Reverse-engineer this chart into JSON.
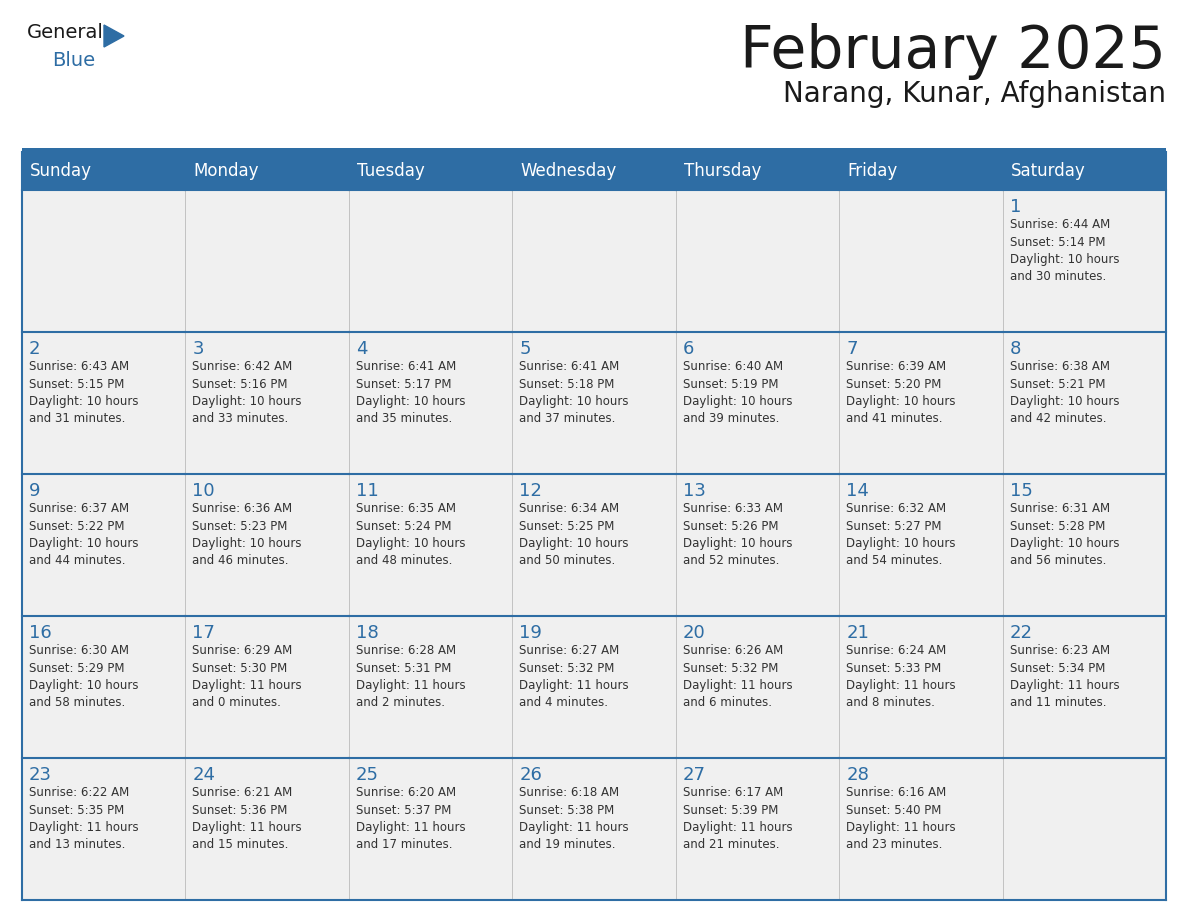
{
  "title": "February 2025",
  "subtitle": "Narang, Kunar, Afghanistan",
  "days_of_week": [
    "Sunday",
    "Monday",
    "Tuesday",
    "Wednesday",
    "Thursday",
    "Friday",
    "Saturday"
  ],
  "header_bg": "#2E6DA4",
  "header_text": "#FFFFFF",
  "cell_bg_light": "#F0F0F0",
  "border_color": "#2E6DA4",
  "row_border_color": "#4A90C4",
  "text_color": "#333333",
  "day_number_color": "#2E6DA4",
  "title_color": "#1a1a1a",
  "logo_general_color": "#1a1a1a",
  "logo_blue_color": "#2E6DA4",
  "logo_triangle_color": "#2E6DA4",
  "calendar_data": [
    [
      {
        "day": null,
        "info": ""
      },
      {
        "day": null,
        "info": ""
      },
      {
        "day": null,
        "info": ""
      },
      {
        "day": null,
        "info": ""
      },
      {
        "day": null,
        "info": ""
      },
      {
        "day": null,
        "info": ""
      },
      {
        "day": 1,
        "info": "Sunrise: 6:44 AM\nSunset: 5:14 PM\nDaylight: 10 hours\nand 30 minutes."
      }
    ],
    [
      {
        "day": 2,
        "info": "Sunrise: 6:43 AM\nSunset: 5:15 PM\nDaylight: 10 hours\nand 31 minutes."
      },
      {
        "day": 3,
        "info": "Sunrise: 6:42 AM\nSunset: 5:16 PM\nDaylight: 10 hours\nand 33 minutes."
      },
      {
        "day": 4,
        "info": "Sunrise: 6:41 AM\nSunset: 5:17 PM\nDaylight: 10 hours\nand 35 minutes."
      },
      {
        "day": 5,
        "info": "Sunrise: 6:41 AM\nSunset: 5:18 PM\nDaylight: 10 hours\nand 37 minutes."
      },
      {
        "day": 6,
        "info": "Sunrise: 6:40 AM\nSunset: 5:19 PM\nDaylight: 10 hours\nand 39 minutes."
      },
      {
        "day": 7,
        "info": "Sunrise: 6:39 AM\nSunset: 5:20 PM\nDaylight: 10 hours\nand 41 minutes."
      },
      {
        "day": 8,
        "info": "Sunrise: 6:38 AM\nSunset: 5:21 PM\nDaylight: 10 hours\nand 42 minutes."
      }
    ],
    [
      {
        "day": 9,
        "info": "Sunrise: 6:37 AM\nSunset: 5:22 PM\nDaylight: 10 hours\nand 44 minutes."
      },
      {
        "day": 10,
        "info": "Sunrise: 6:36 AM\nSunset: 5:23 PM\nDaylight: 10 hours\nand 46 minutes."
      },
      {
        "day": 11,
        "info": "Sunrise: 6:35 AM\nSunset: 5:24 PM\nDaylight: 10 hours\nand 48 minutes."
      },
      {
        "day": 12,
        "info": "Sunrise: 6:34 AM\nSunset: 5:25 PM\nDaylight: 10 hours\nand 50 minutes."
      },
      {
        "day": 13,
        "info": "Sunrise: 6:33 AM\nSunset: 5:26 PM\nDaylight: 10 hours\nand 52 minutes."
      },
      {
        "day": 14,
        "info": "Sunrise: 6:32 AM\nSunset: 5:27 PM\nDaylight: 10 hours\nand 54 minutes."
      },
      {
        "day": 15,
        "info": "Sunrise: 6:31 AM\nSunset: 5:28 PM\nDaylight: 10 hours\nand 56 minutes."
      }
    ],
    [
      {
        "day": 16,
        "info": "Sunrise: 6:30 AM\nSunset: 5:29 PM\nDaylight: 10 hours\nand 58 minutes."
      },
      {
        "day": 17,
        "info": "Sunrise: 6:29 AM\nSunset: 5:30 PM\nDaylight: 11 hours\nand 0 minutes."
      },
      {
        "day": 18,
        "info": "Sunrise: 6:28 AM\nSunset: 5:31 PM\nDaylight: 11 hours\nand 2 minutes."
      },
      {
        "day": 19,
        "info": "Sunrise: 6:27 AM\nSunset: 5:32 PM\nDaylight: 11 hours\nand 4 minutes."
      },
      {
        "day": 20,
        "info": "Sunrise: 6:26 AM\nSunset: 5:32 PM\nDaylight: 11 hours\nand 6 minutes."
      },
      {
        "day": 21,
        "info": "Sunrise: 6:24 AM\nSunset: 5:33 PM\nDaylight: 11 hours\nand 8 minutes."
      },
      {
        "day": 22,
        "info": "Sunrise: 6:23 AM\nSunset: 5:34 PM\nDaylight: 11 hours\nand 11 minutes."
      }
    ],
    [
      {
        "day": 23,
        "info": "Sunrise: 6:22 AM\nSunset: 5:35 PM\nDaylight: 11 hours\nand 13 minutes."
      },
      {
        "day": 24,
        "info": "Sunrise: 6:21 AM\nSunset: 5:36 PM\nDaylight: 11 hours\nand 15 minutes."
      },
      {
        "day": 25,
        "info": "Sunrise: 6:20 AM\nSunset: 5:37 PM\nDaylight: 11 hours\nand 17 minutes."
      },
      {
        "day": 26,
        "info": "Sunrise: 6:18 AM\nSunset: 5:38 PM\nDaylight: 11 hours\nand 19 minutes."
      },
      {
        "day": 27,
        "info": "Sunrise: 6:17 AM\nSunset: 5:39 PM\nDaylight: 11 hours\nand 21 minutes."
      },
      {
        "day": 28,
        "info": "Sunrise: 6:16 AM\nSunset: 5:40 PM\nDaylight: 11 hours\nand 23 minutes."
      },
      {
        "day": null,
        "info": ""
      }
    ]
  ]
}
